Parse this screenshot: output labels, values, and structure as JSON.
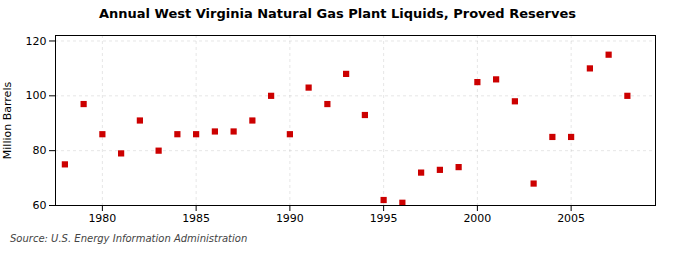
{
  "chart_data": {
    "type": "scatter",
    "title": "Annual West Virginia Natural Gas Plant Liquids, Proved Reserves",
    "ylabel": "Million Barrels",
    "source": "Source: U.S. Energy Information Administration",
    "x": [
      1978,
      1979,
      1980,
      1981,
      1982,
      1983,
      1984,
      1985,
      1986,
      1987,
      1988,
      1989,
      1990,
      1991,
      1992,
      1993,
      1994,
      1995,
      1996,
      1997,
      1998,
      1999,
      2000,
      2001,
      2002,
      2003,
      2004,
      2005,
      2006,
      2007,
      2008
    ],
    "values": [
      75,
      97,
      86,
      79,
      91,
      80,
      86,
      86,
      87,
      87,
      91,
      100,
      86,
      103,
      97,
      108,
      93,
      62,
      61,
      72,
      73,
      74,
      105,
      106,
      98,
      68,
      85,
      85,
      110,
      115,
      100
    ],
    "color": "#cc0000",
    "marker": "square",
    "xlim": [
      1977.5,
      2009.5
    ],
    "ylim": [
      60,
      122
    ],
    "xticks": [
      1980,
      1985,
      1990,
      1995,
      2000,
      2005
    ],
    "yticks": [
      60,
      80,
      100,
      120
    ],
    "grid": true
  }
}
